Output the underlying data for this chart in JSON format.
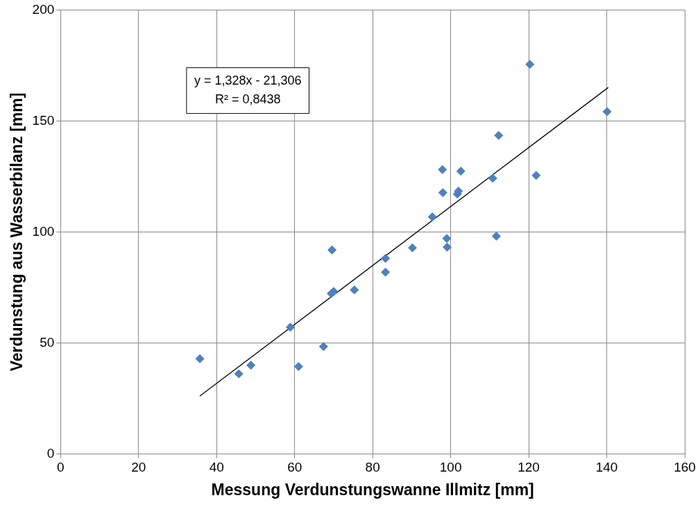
{
  "chart_data": {
    "type": "scatter",
    "xlabel": "Messung Verdunstungswanne Illmitz [mm]",
    "ylabel": "Verdunstung aus Wasserbilanz [mm]",
    "xlim": [
      0,
      160
    ],
    "xticks": [
      0,
      20,
      40,
      60,
      80,
      100,
      120,
      140,
      160
    ],
    "ylim": [
      0,
      200
    ],
    "yticks": [
      0,
      50,
      100,
      150,
      200
    ],
    "grid": true,
    "legend": false,
    "annotations": [
      "y = 1,328x - 21,306",
      "R² = 0,8438"
    ],
    "series": [
      {
        "color": "#4f81bd",
        "marker": "diamond",
        "x": [
          35.7,
          45.7,
          48.8,
          58.9,
          61.0,
          67.4,
          69.6,
          69.4,
          70.0,
          75.3,
          83.3,
          83.3,
          90.2,
          95.3,
          97.9,
          98.0,
          99.0,
          99.1,
          101.7,
          102.0,
          102.6,
          110.8,
          111.7,
          112.3,
          120.3,
          121.9,
          140.1
        ],
        "values": [
          42.9,
          36.1,
          40.0,
          57.1,
          39.4,
          48.4,
          91.9,
          72.3,
          73.2,
          73.9,
          88.1,
          81.9,
          92.9,
          106.8,
          128.1,
          117.7,
          97.1,
          93.2,
          117.1,
          118.4,
          127.4,
          124.2,
          98.1,
          143.5,
          175.5,
          125.5,
          154.2
        ]
      },
      {
        "type": "line",
        "color": "#000000",
        "marker": "none",
        "x": [
          35.7,
          140.4
        ],
        "values": [
          26.1,
          165.1
        ]
      }
    ]
  }
}
